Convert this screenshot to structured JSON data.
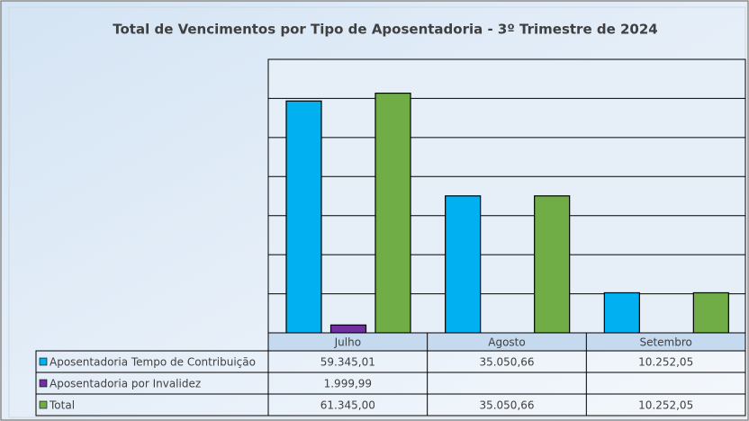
{
  "chart_data": {
    "type": "bar",
    "title": "Total de Vencimentos por Tipo de Aposentadoria - 3º Trimestre de 2024",
    "categories": [
      "Julho",
      "Agosto",
      "Setembro"
    ],
    "series": [
      {
        "name": "Aposentadoria Tempo de Contribuição",
        "color": "#00b0f0",
        "values": [
          59345.01,
          35050.66,
          10252.05
        ],
        "value_labels": [
          "59.345,01",
          "35.050,66",
          "10.252,05"
        ]
      },
      {
        "name": "Aposentadoria por Invalidez",
        "color": "#7030a0",
        "values": [
          1999.99,
          null,
          null
        ],
        "value_labels": [
          "1.999,99",
          null,
          null
        ]
      },
      {
        "name": "Total",
        "color": "#70ad47",
        "values": [
          61345.0,
          35050.66,
          10252.05
        ],
        "value_labels": [
          "61.345,00",
          "35.050,66",
          "10.252,05"
        ]
      }
    ],
    "ylim": [
      0,
      70000
    ],
    "yticks": [
      0,
      10000,
      20000,
      30000,
      40000,
      50000,
      60000,
      70000
    ],
    "grid": true
  }
}
